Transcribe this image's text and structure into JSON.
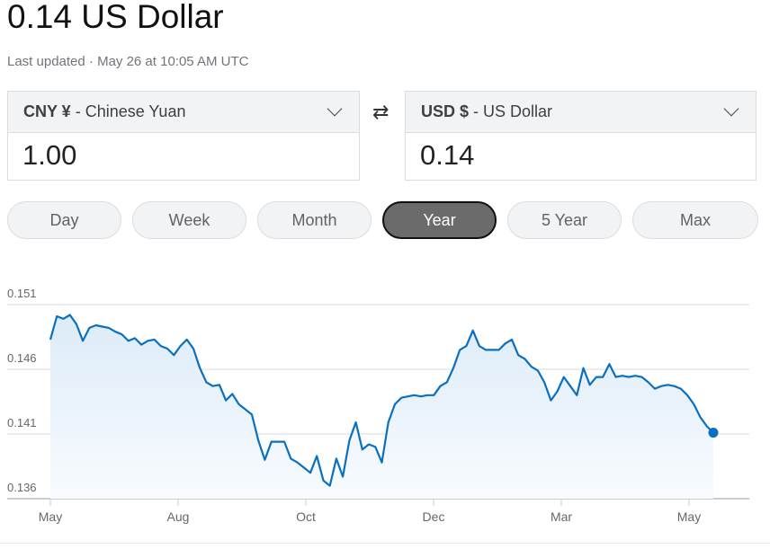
{
  "header": {
    "title": "0.14 US Dollar",
    "last_updated": "Last updated · May 26 at 10:05 AM UTC"
  },
  "from": {
    "code": "CNY ¥",
    "name": "- Chinese Yuan",
    "value": "1.00"
  },
  "to": {
    "code": "USD $",
    "name": "- US Dollar",
    "value": "0.14"
  },
  "swap_icon": "⇄",
  "ranges": [
    {
      "label": "Day"
    },
    {
      "label": "Week"
    },
    {
      "label": "Month"
    },
    {
      "label": "Year",
      "active": true
    },
    {
      "label": "5 Year"
    },
    {
      "label": "Max"
    }
  ],
  "chart_data": {
    "type": "area",
    "line_color": "#0b6fc0",
    "ylim": [
      0.136,
      0.151
    ],
    "yticks": [
      "0.151",
      "0.146",
      "0.141",
      "0.136"
    ],
    "xticks": [
      "May",
      "Aug",
      "Oct",
      "Dec",
      "Mar",
      "May"
    ],
    "grid": true,
    "values": [
      0.1483,
      0.1501,
      0.1499,
      0.1502,
      0.1495,
      0.1482,
      0.1492,
      0.1494,
      0.1493,
      0.1492,
      0.1489,
      0.1487,
      0.1482,
      0.1484,
      0.1479,
      0.1482,
      0.1483,
      0.1478,
      0.1476,
      0.1471,
      0.1478,
      0.1483,
      0.1476,
      0.1461,
      0.145,
      0.1447,
      0.1448,
      0.1436,
      0.1441,
      0.1433,
      0.1429,
      0.1425,
      0.1405,
      0.139,
      0.1404,
      0.1404,
      0.1404,
      0.1391,
      0.1388,
      0.1384,
      0.138,
      0.1393,
      0.1374,
      0.137,
      0.1391,
      0.1377,
      0.1405,
      0.1419,
      0.1398,
      0.1402,
      0.14,
      0.1388,
      0.1419,
      0.1433,
      0.1438,
      0.1439,
      0.144,
      0.1439,
      0.144,
      0.144,
      0.1447,
      0.145,
      0.1461,
      0.1475,
      0.1478,
      0.149,
      0.1478,
      0.1475,
      0.1475,
      0.1475,
      0.148,
      0.1483,
      0.1471,
      0.1468,
      0.1462,
      0.1459,
      0.145,
      0.1436,
      0.1443,
      0.1454,
      0.1447,
      0.144,
      0.1461,
      0.1448,
      0.1454,
      0.1454,
      0.1464,
      0.1454,
      0.1455,
      0.1454,
      0.1455,
      0.1454,
      0.145,
      0.1445,
      0.1447,
      0.1448,
      0.1447,
      0.1445,
      0.144,
      0.1433,
      0.1423,
      0.1416,
      0.1411
    ]
  }
}
